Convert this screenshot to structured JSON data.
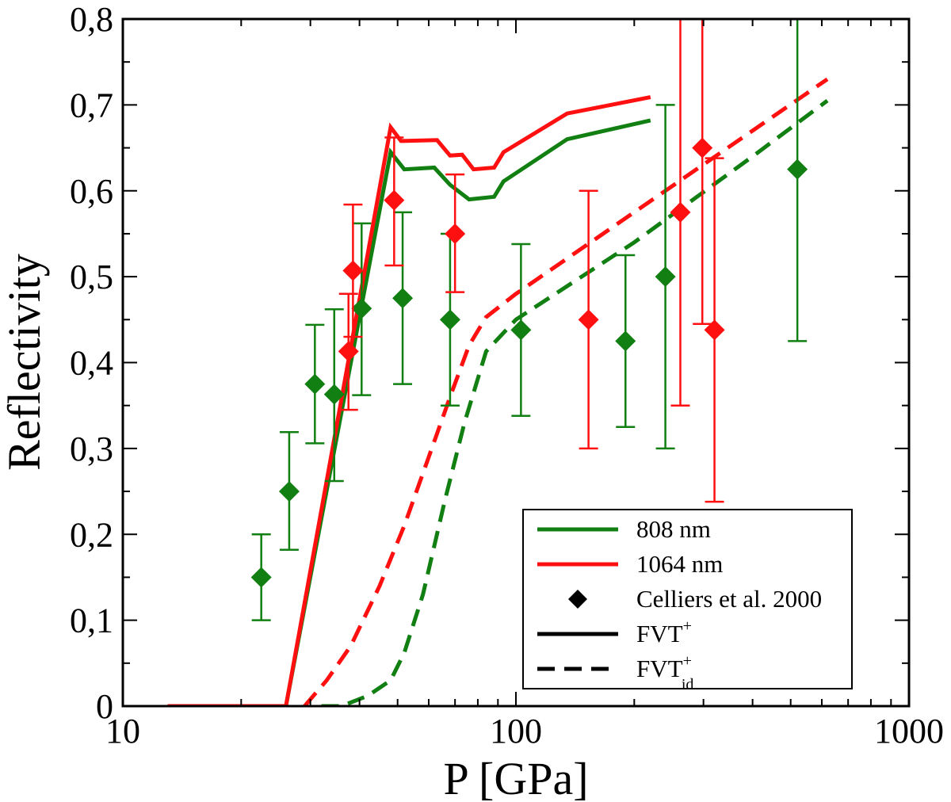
{
  "chart_data": {
    "type": "line",
    "xscale": "log",
    "xlim": [
      10,
      1000
    ],
    "ylim": [
      0,
      0.8
    ],
    "xlabel": "P [GPa]",
    "ylabel": "Reflectivity",
    "grid": false,
    "legend_position": "bottom-right",
    "x_ticks": [
      {
        "value": 10,
        "label": "10"
      },
      {
        "value": 100,
        "label": "100"
      },
      {
        "value": 1000,
        "label": "1000"
      }
    ],
    "y_ticks": [
      {
        "value": 0,
        "label": "0"
      },
      {
        "value": 0.1,
        "label": "0,1"
      },
      {
        "value": 0.2,
        "label": "0,2"
      },
      {
        "value": 0.3,
        "label": "0,3"
      },
      {
        "value": 0.4,
        "label": "0,4"
      },
      {
        "value": 0.5,
        "label": "0,5"
      },
      {
        "value": 0.6,
        "label": "0,6"
      },
      {
        "value": 0.7,
        "label": "0,7"
      },
      {
        "value": 0.8,
        "label": "0,8"
      }
    ],
    "colors": {
      "green": "#117f11",
      "red": "#ff1010",
      "black": "#000000"
    },
    "lines": [
      {
        "color": "green",
        "style": "solid",
        "points": [
          [
            13,
            0
          ],
          [
            26,
            0
          ],
          [
            48,
            0.645
          ],
          [
            52,
            0.625
          ],
          [
            62,
            0.627
          ],
          [
            68,
            0.607
          ],
          [
            76,
            0.59
          ],
          [
            88,
            0.593
          ],
          [
            93,
            0.611
          ],
          [
            135,
            0.66
          ],
          [
            220,
            0.682
          ]
        ]
      },
      {
        "color": "red",
        "style": "solid",
        "points": [
          [
            13,
            0
          ],
          [
            26,
            0
          ],
          [
            48,
            0.674
          ],
          [
            51,
            0.658
          ],
          [
            63,
            0.659
          ],
          [
            68,
            0.641
          ],
          [
            73,
            0.642
          ],
          [
            78,
            0.625
          ],
          [
            88,
            0.627
          ],
          [
            93,
            0.645
          ],
          [
            135,
            0.69
          ],
          [
            220,
            0.709
          ]
        ]
      },
      {
        "color": "red",
        "style": "dashed",
        "points": [
          [
            29,
            0
          ],
          [
            33,
            0.03
          ],
          [
            38,
            0.07
          ],
          [
            45,
            0.14
          ],
          [
            52,
            0.21
          ],
          [
            60,
            0.29
          ],
          [
            68,
            0.36
          ],
          [
            76,
            0.42
          ],
          [
            84,
            0.453
          ],
          [
            100,
            0.48
          ],
          [
            200,
            0.575
          ],
          [
            400,
            0.67
          ],
          [
            620,
            0.73
          ]
        ]
      },
      {
        "color": "green",
        "style": "dashed",
        "points": [
          [
            32,
            0
          ],
          [
            36,
            0
          ],
          [
            42,
            0.012
          ],
          [
            48,
            0.03
          ],
          [
            52,
            0.062
          ],
          [
            58,
            0.13
          ],
          [
            66,
            0.24
          ],
          [
            74,
            0.33
          ],
          [
            84,
            0.413
          ],
          [
            100,
            0.45
          ],
          [
            200,
            0.54
          ],
          [
            400,
            0.64
          ],
          [
            620,
            0.705
          ]
        ]
      }
    ],
    "points": [
      {
        "color": "green",
        "data": [
          [
            22.5,
            0.15,
            0.1,
            0.2
          ],
          [
            26.5,
            0.25,
            0.182,
            0.319
          ],
          [
            30.8,
            0.375,
            0.306,
            0.444
          ],
          [
            34.5,
            0.363,
            0.262,
            0.462
          ],
          [
            40.5,
            0.463,
            0.362,
            0.562
          ],
          [
            51.5,
            0.475,
            0.375,
            0.575
          ],
          [
            68,
            0.45,
            0.35,
            0.55
          ],
          [
            103,
            0.438,
            0.338,
            0.538
          ],
          [
            190,
            0.425,
            0.325,
            0.525
          ],
          [
            240,
            0.5,
            0.3,
            0.7
          ],
          [
            520,
            0.625,
            0.425,
            0.8
          ]
        ]
      },
      {
        "color": "red",
        "data": [
          [
            37.5,
            0.413,
            0.345,
            0.48
          ],
          [
            38.5,
            0.507,
            0.43,
            0.584
          ],
          [
            49,
            0.589,
            0.513,
            0.662
          ],
          [
            70,
            0.55,
            0.482,
            0.619
          ],
          [
            153,
            0.45,
            0.3,
            0.6
          ],
          [
            262,
            0.575,
            0.35,
            0.8
          ],
          [
            298,
            0.65,
            0.445,
            0.8
          ],
          [
            320,
            0.438,
            0.238,
            0.638
          ]
        ]
      }
    ],
    "legend": [
      {
        "label": "808 nm",
        "kind": "line",
        "color": "green",
        "style": "solid"
      },
      {
        "label": "1064 nm",
        "kind": "line",
        "color": "red",
        "style": "solid"
      },
      {
        "label": "Celliers et al. 2000",
        "kind": "marker",
        "color": "black",
        "style": "diamond"
      },
      {
        "label": "FVT",
        "sup": "+",
        "kind": "line",
        "color": "black",
        "style": "solid"
      },
      {
        "label": "FVT",
        "sup": "+",
        "sub": "id",
        "kind": "line",
        "color": "black",
        "style": "dashed"
      }
    ]
  }
}
